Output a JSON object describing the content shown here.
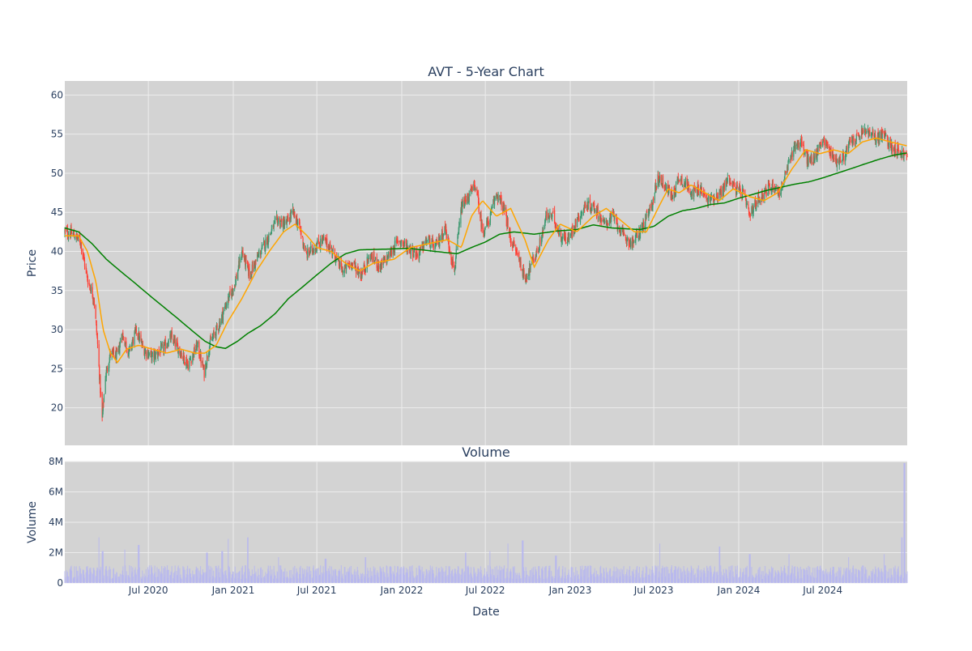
{
  "chart_data": [
    {
      "type": "candlestick",
      "title": "AVT - 5-Year Chart",
      "xlabel": "",
      "ylabel": "Price",
      "xlim": [
        "2020-01-02",
        "2024-12-31"
      ],
      "ylim": [
        15.2,
        61.8
      ],
      "yticks": [
        20,
        25,
        30,
        35,
        40,
        45,
        50,
        55,
        60
      ],
      "grid": true,
      "background": "#d3d3d3",
      "colors": {
        "up": "#3d9970",
        "down": "#ff4136",
        "ma_short": "#ffa500",
        "ma_long": "#008000"
      },
      "price_anchors": [
        [
          "2020-01-02",
          42.5
        ],
        [
          "2020-01-20",
          42.2
        ],
        [
          "2020-02-05",
          41.3
        ],
        [
          "2020-02-20",
          36.5
        ],
        [
          "2020-03-05",
          34.0
        ],
        [
          "2020-03-12",
          29.0
        ],
        [
          "2020-03-23",
          18.5
        ],
        [
          "2020-03-30",
          24.0
        ],
        [
          "2020-04-10",
          27.0
        ],
        [
          "2020-04-25",
          26.5
        ],
        [
          "2020-05-05",
          29.5
        ],
        [
          "2020-05-20",
          27.0
        ],
        [
          "2020-06-05",
          30.0
        ],
        [
          "2020-06-20",
          27.5
        ],
        [
          "2020-07-10",
          26.5
        ],
        [
          "2020-08-01",
          27.5
        ],
        [
          "2020-08-20",
          29.0
        ],
        [
          "2020-09-10",
          27.0
        ],
        [
          "2020-09-25",
          25.5
        ],
        [
          "2020-10-15",
          28.0
        ],
        [
          "2020-10-30",
          24.5
        ],
        [
          "2020-11-10",
          28.0
        ],
        [
          "2020-11-30",
          30.5
        ],
        [
          "2020-12-15",
          33.0
        ],
        [
          "2021-01-05",
          36.0
        ],
        [
          "2021-01-20",
          40.0
        ],
        [
          "2021-02-05",
          37.0
        ],
        [
          "2021-02-25",
          39.5
        ],
        [
          "2021-03-15",
          41.5
        ],
        [
          "2021-04-05",
          44.0
        ],
        [
          "2021-04-25",
          43.5
        ],
        [
          "2021-05-10",
          45.0
        ],
        [
          "2021-05-25",
          43.0
        ],
        [
          "2021-06-08",
          39.5
        ],
        [
          "2021-06-25",
          40.5
        ],
        [
          "2021-07-15",
          41.5
        ],
        [
          "2021-08-05",
          40.0
        ],
        [
          "2021-08-25",
          37.5
        ],
        [
          "2021-09-15",
          38.5
        ],
        [
          "2021-10-05",
          37.0
        ],
        [
          "2021-10-25",
          39.5
        ],
        [
          "2021-11-15",
          38.0
        ],
        [
          "2021-12-05",
          39.5
        ],
        [
          "2021-12-25",
          41.5
        ],
        [
          "2022-01-15",
          40.5
        ],
        [
          "2022-02-05",
          39.5
        ],
        [
          "2022-02-25",
          41.5
        ],
        [
          "2022-03-15",
          40.5
        ],
        [
          "2022-04-05",
          43.0
        ],
        [
          "2022-04-25",
          37.5
        ],
        [
          "2022-05-10",
          45.5
        ],
        [
          "2022-05-25",
          47.0
        ],
        [
          "2022-06-10",
          48.5
        ],
        [
          "2022-06-25",
          42.5
        ],
        [
          "2022-07-10",
          44.0
        ],
        [
          "2022-07-25",
          47.5
        ],
        [
          "2022-08-10",
          45.5
        ],
        [
          "2022-08-25",
          41.5
        ],
        [
          "2022-09-10",
          39.5
        ],
        [
          "2022-09-25",
          36.5
        ],
        [
          "2022-10-10",
          38.5
        ],
        [
          "2022-10-25",
          40.5
        ],
        [
          "2022-11-10",
          44.5
        ],
        [
          "2022-11-25",
          44.5
        ],
        [
          "2022-12-10",
          42.0
        ],
        [
          "2022-12-28",
          41.5
        ],
        [
          "2023-01-15",
          44.0
        ],
        [
          "2023-02-05",
          46.0
        ],
        [
          "2023-02-25",
          45.5
        ],
        [
          "2023-03-15",
          43.5
        ],
        [
          "2023-04-05",
          44.5
        ],
        [
          "2023-04-25",
          42.0
        ],
        [
          "2023-05-15",
          41.0
        ],
        [
          "2023-06-05",
          43.0
        ],
        [
          "2023-06-25",
          45.5
        ],
        [
          "2023-07-10",
          49.5
        ],
        [
          "2023-07-25",
          48.5
        ],
        [
          "2023-08-10",
          47.0
        ],
        [
          "2023-08-25",
          49.5
        ],
        [
          "2023-09-10",
          48.5
        ],
        [
          "2023-09-25",
          47.5
        ],
        [
          "2023-10-10",
          48.0
        ],
        [
          "2023-10-25",
          46.5
        ],
        [
          "2023-11-10",
          47.0
        ],
        [
          "2023-11-25",
          47.5
        ],
        [
          "2023-12-10",
          49.5
        ],
        [
          "2023-12-25",
          48.0
        ],
        [
          "2024-01-10",
          47.5
        ],
        [
          "2024-01-25",
          44.5
        ],
        [
          "2024-02-10",
          46.5
        ],
        [
          "2024-02-25",
          47.5
        ],
        [
          "2024-03-15",
          48.5
        ],
        [
          "2024-03-30",
          47.5
        ],
        [
          "2024-04-15",
          50.5
        ],
        [
          "2024-04-30",
          53.5
        ],
        [
          "2024-05-15",
          54.0
        ],
        [
          "2024-05-30",
          51.5
        ],
        [
          "2024-06-15",
          52.0
        ],
        [
          "2024-06-30",
          54.5
        ],
        [
          "2024-07-15",
          53.0
        ],
        [
          "2024-07-30",
          51.5
        ],
        [
          "2024-08-15",
          52.0
        ],
        [
          "2024-08-30",
          54.0
        ],
        [
          "2024-09-15",
          54.5
        ],
        [
          "2024-09-30",
          55.5
        ],
        [
          "2024-10-10",
          55.0
        ],
        [
          "2024-10-25",
          54.5
        ],
        [
          "2024-11-10",
          55.0
        ],
        [
          "2024-11-25",
          53.5
        ],
        [
          "2024-12-10",
          53.0
        ],
        [
          "2024-12-31",
          52.0
        ]
      ],
      "ma_short_anchors": [
        [
          "2020-01-02",
          42.0
        ],
        [
          "2020-02-01",
          42.0
        ],
        [
          "2020-02-20",
          40.0
        ],
        [
          "2020-03-10",
          36.0
        ],
        [
          "2020-03-25",
          30.0
        ],
        [
          "2020-04-10",
          27.0
        ],
        [
          "2020-04-25",
          25.8
        ],
        [
          "2020-05-15",
          27.5
        ],
        [
          "2020-06-10",
          28.0
        ],
        [
          "2020-07-10",
          27.5
        ],
        [
          "2020-08-10",
          27.0
        ],
        [
          "2020-09-10",
          27.5
        ],
        [
          "2020-10-10",
          27.0
        ],
        [
          "2020-11-01",
          27.0
        ],
        [
          "2020-11-25",
          28.0
        ],
        [
          "2020-12-20",
          31.0
        ],
        [
          "2021-01-20",
          34.0
        ],
        [
          "2021-02-20",
          37.5
        ],
        [
          "2021-03-20",
          40.0
        ],
        [
          "2021-04-20",
          42.5
        ],
        [
          "2021-05-15",
          43.5
        ],
        [
          "2021-06-10",
          42.0
        ],
        [
          "2021-07-01",
          40.5
        ],
        [
          "2021-08-01",
          40.0
        ],
        [
          "2021-09-01",
          38.5
        ],
        [
          "2021-10-01",
          37.5
        ],
        [
          "2021-11-01",
          38.5
        ],
        [
          "2021-12-15",
          39.0
        ],
        [
          "2022-01-20",
          40.5
        ],
        [
          "2022-03-01",
          41.0
        ],
        [
          "2022-04-10",
          41.5
        ],
        [
          "2022-05-10",
          40.5
        ],
        [
          "2022-06-01",
          44.5
        ],
        [
          "2022-06-25",
          46.5
        ],
        [
          "2022-07-25",
          44.5
        ],
        [
          "2022-08-25",
          45.5
        ],
        [
          "2022-09-25",
          41.5
        ],
        [
          "2022-10-15",
          38.0
        ],
        [
          "2022-11-15",
          41.5
        ],
        [
          "2022-12-10",
          43.5
        ],
        [
          "2023-01-15",
          42.5
        ],
        [
          "2023-02-20",
          44.5
        ],
        [
          "2023-03-20",
          45.5
        ],
        [
          "2023-04-20",
          44.0
        ],
        [
          "2023-05-20",
          42.5
        ],
        [
          "2023-06-15",
          42.5
        ],
        [
          "2023-07-10",
          45.5
        ],
        [
          "2023-08-01",
          48.0
        ],
        [
          "2023-08-25",
          47.5
        ],
        [
          "2023-09-20",
          48.5
        ],
        [
          "2023-10-20",
          47.5
        ],
        [
          "2023-11-20",
          46.5
        ],
        [
          "2023-12-20",
          48.0
        ],
        [
          "2024-01-25",
          47.0
        ],
        [
          "2024-02-25",
          46.5
        ],
        [
          "2024-03-25",
          47.5
        ],
        [
          "2024-04-25",
          50.5
        ],
        [
          "2024-05-25",
          53.0
        ],
        [
          "2024-06-25",
          52.5
        ],
        [
          "2024-07-25",
          53.0
        ],
        [
          "2024-08-25",
          52.5
        ],
        [
          "2024-09-25",
          54.0
        ],
        [
          "2024-10-25",
          54.5
        ],
        [
          "2024-11-25",
          54.0
        ],
        [
          "2024-12-31",
          53.5
        ]
      ],
      "ma_long_anchors": [
        [
          "2020-01-02",
          43.0
        ],
        [
          "2020-02-01",
          42.5
        ],
        [
          "2020-03-01",
          41.0
        ],
        [
          "2020-04-01",
          39.0
        ],
        [
          "2020-05-01",
          37.5
        ],
        [
          "2020-06-01",
          36.0
        ],
        [
          "2020-07-01",
          34.5
        ],
        [
          "2020-08-01",
          33.0
        ],
        [
          "2020-09-01",
          31.5
        ],
        [
          "2020-10-01",
          30.0
        ],
        [
          "2020-11-01",
          28.5
        ],
        [
          "2020-11-25",
          27.8
        ],
        [
          "2020-12-15",
          27.6
        ],
        [
          "2021-01-10",
          28.5
        ],
        [
          "2021-02-01",
          29.5
        ],
        [
          "2021-03-01",
          30.5
        ],
        [
          "2021-04-01",
          32.0
        ],
        [
          "2021-05-01",
          34.0
        ],
        [
          "2021-06-01",
          35.5
        ],
        [
          "2021-07-01",
          37.0
        ],
        [
          "2021-08-01",
          38.5
        ],
        [
          "2021-09-01",
          39.7
        ],
        [
          "2021-10-01",
          40.2
        ],
        [
          "2021-12-01",
          40.3
        ],
        [
          "2022-01-15",
          40.4
        ],
        [
          "2022-03-15",
          40.0
        ],
        [
          "2022-05-01",
          39.7
        ],
        [
          "2022-06-01",
          40.5
        ],
        [
          "2022-07-01",
          41.2
        ],
        [
          "2022-08-01",
          42.2
        ],
        [
          "2022-09-01",
          42.5
        ],
        [
          "2022-10-15",
          42.2
        ],
        [
          "2022-12-01",
          42.6
        ],
        [
          "2023-01-15",
          42.8
        ],
        [
          "2023-02-20",
          43.4
        ],
        [
          "2023-04-01",
          43.0
        ],
        [
          "2023-06-01",
          42.8
        ],
        [
          "2023-07-01",
          43.2
        ],
        [
          "2023-08-01",
          44.5
        ],
        [
          "2023-09-01",
          45.2
        ],
        [
          "2023-10-01",
          45.5
        ],
        [
          "2023-11-01",
          46.0
        ],
        [
          "2023-12-01",
          46.2
        ],
        [
          "2024-01-01",
          46.8
        ],
        [
          "2024-02-01",
          47.3
        ],
        [
          "2024-03-01",
          47.8
        ],
        [
          "2024-04-01",
          48.2
        ],
        [
          "2024-05-01",
          48.6
        ],
        [
          "2024-06-01",
          48.9
        ],
        [
          "2024-07-01",
          49.4
        ],
        [
          "2024-08-01",
          50.0
        ],
        [
          "2024-09-01",
          50.6
        ],
        [
          "2024-10-01",
          51.2
        ],
        [
          "2024-11-01",
          51.8
        ],
        [
          "2024-12-01",
          52.3
        ],
        [
          "2024-12-31",
          52.6
        ]
      ]
    },
    {
      "type": "bar",
      "title": "Volume",
      "xlabel": "Date",
      "ylabel": "Volume",
      "xlim": [
        "2020-01-02",
        "2024-12-31"
      ],
      "ylim": [
        0,
        8000000
      ],
      "yticks": [
        0,
        2000000,
        4000000,
        6000000,
        8000000
      ],
      "ytick_labels": [
        "0",
        "2M",
        "4M",
        "6M",
        "8M"
      ],
      "xticks": [
        "2020-07-01",
        "2021-01-01",
        "2021-07-01",
        "2022-01-01",
        "2022-07-01",
        "2023-01-01",
        "2023-07-01",
        "2024-01-01",
        "2024-07-01"
      ],
      "xtick_labels": [
        "Jul 2020",
        "Jan 2021",
        "Jul 2021",
        "Jan 2022",
        "Jul 2022",
        "Jan 2023",
        "Jul 2023",
        "Jan 2024",
        "Jul 2024"
      ],
      "grid": true,
      "background": "#d3d3d3",
      "bar_color": "#b6b6f0",
      "volume_base": 650000,
      "volume_spikes": [
        [
          "2020-03-15",
          3000000
        ],
        [
          "2020-03-24",
          2100000
        ],
        [
          "2020-05-10",
          2200000
        ],
        [
          "2020-06-10",
          2500000
        ],
        [
          "2020-11-05",
          2000000
        ],
        [
          "2020-12-08",
          2100000
        ],
        [
          "2020-12-20",
          2900000
        ],
        [
          "2021-02-01",
          3000000
        ],
        [
          "2021-04-10",
          1700000
        ],
        [
          "2021-07-20",
          1600000
        ],
        [
          "2021-10-15",
          1700000
        ],
        [
          "2022-05-20",
          2000000
        ],
        [
          "2022-07-10",
          2100000
        ],
        [
          "2022-08-20",
          2600000
        ],
        [
          "2022-09-20",
          2800000
        ],
        [
          "2022-12-01",
          1800000
        ],
        [
          "2023-07-15",
          2600000
        ],
        [
          "2023-11-20",
          2400000
        ],
        [
          "2024-01-25",
          1900000
        ],
        [
          "2024-04-20",
          1900000
        ],
        [
          "2024-08-25",
          1700000
        ],
        [
          "2024-11-10",
          1900000
        ],
        [
          "2024-12-25",
          7900000
        ],
        [
          "2024-12-20",
          3000000
        ]
      ]
    }
  ]
}
